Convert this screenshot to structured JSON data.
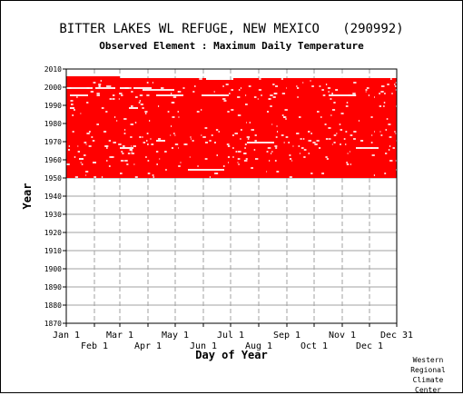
{
  "header": {
    "title": "BITTER LAKES WL REFUGE, NEW MEXICO   (290992)",
    "subtitle": "Observed Element : Maximum Daily Temperature"
  },
  "credit": {
    "line1": "Western",
    "line2": "Regional",
    "line3": "Climate",
    "line4": "Center"
  },
  "chart_data": {
    "type": "heatmap",
    "title": "BITTER LAKES WL REFUGE, NEW MEXICO   (290992)",
    "subtitle": "Observed Element : Maximum Daily Temperature",
    "xlabel": "Day of Year",
    "ylabel": "Year",
    "x_ticks_top_row": [
      {
        "label": "Jan 1",
        "day": 1
      },
      {
        "label": "Mar 1",
        "day": 60
      },
      {
        "label": "May 1",
        "day": 121
      },
      {
        "label": "Jul 1",
        "day": 182
      },
      {
        "label": "Sep 1",
        "day": 244
      },
      {
        "label": "Nov 1",
        "day": 305
      },
      {
        "label": "Dec 31",
        "day": 365
      }
    ],
    "x_ticks_bottom_row": [
      {
        "label": "Feb 1",
        "day": 32
      },
      {
        "label": "Apr 1",
        "day": 91
      },
      {
        "label": "Jun 1",
        "day": 152
      },
      {
        "label": "Aug 1",
        "day": 213
      },
      {
        "label": "Oct 1",
        "day": 274
      },
      {
        "label": "Dec 1",
        "day": 335
      }
    ],
    "xlim": [
      1,
      365
    ],
    "ylim": [
      1870,
      2010
    ],
    "y_ticks": [
      1870,
      1880,
      1890,
      1900,
      1910,
      1920,
      1930,
      1940,
      1950,
      1960,
      1970,
      1980,
      1990,
      2000,
      2010
    ],
    "grid": true,
    "data_color": "#ff0000",
    "record_start_year": 1950,
    "record_end_year": 2005,
    "end_year_by_segment": [
      {
        "day_start": 1,
        "day_end": 60,
        "end_year": 2005
      },
      {
        "day_start": 60,
        "day_end": 155,
        "end_year": 2004
      },
      {
        "day_start": 155,
        "day_end": 185,
        "end_year": 2003
      },
      {
        "day_start": 185,
        "day_end": 365,
        "end_year": 2004
      }
    ],
    "missing_spans": [
      {
        "year": 1999,
        "day_start": 1,
        "day_end": 30
      },
      {
        "year": 1999,
        "day_start": 33,
        "day_end": 55
      },
      {
        "year": 1999,
        "day_start": 60,
        "day_end": 70
      },
      {
        "year": 1999,
        "day_start": 75,
        "day_end": 95
      },
      {
        "year": 1998,
        "day_start": 85,
        "day_end": 120
      },
      {
        "year": 1995,
        "day_start": 5,
        "day_end": 25
      },
      {
        "year": 1995,
        "day_start": 100,
        "day_end": 130
      },
      {
        "year": 1995,
        "day_start": 150,
        "day_end": 180
      },
      {
        "year": 1995,
        "day_start": 290,
        "day_end": 320
      },
      {
        "year": 1988,
        "day_start": 70,
        "day_end": 80
      },
      {
        "year": 1988,
        "day_start": 5,
        "day_end": 10
      },
      {
        "year": 1970,
        "day_start": 100,
        "day_end": 110
      },
      {
        "year": 1969,
        "day_start": 200,
        "day_end": 230
      },
      {
        "year": 1966,
        "day_start": 60,
        "day_end": 75
      },
      {
        "year": 1966,
        "day_start": 320,
        "day_end": 345
      },
      {
        "year": 1954,
        "day_start": 135,
        "day_end": 175
      },
      {
        "year": 1958,
        "day_start": 30,
        "day_end": 34
      },
      {
        "year": 1960,
        "day_start": 15,
        "day_end": 20
      }
    ]
  }
}
